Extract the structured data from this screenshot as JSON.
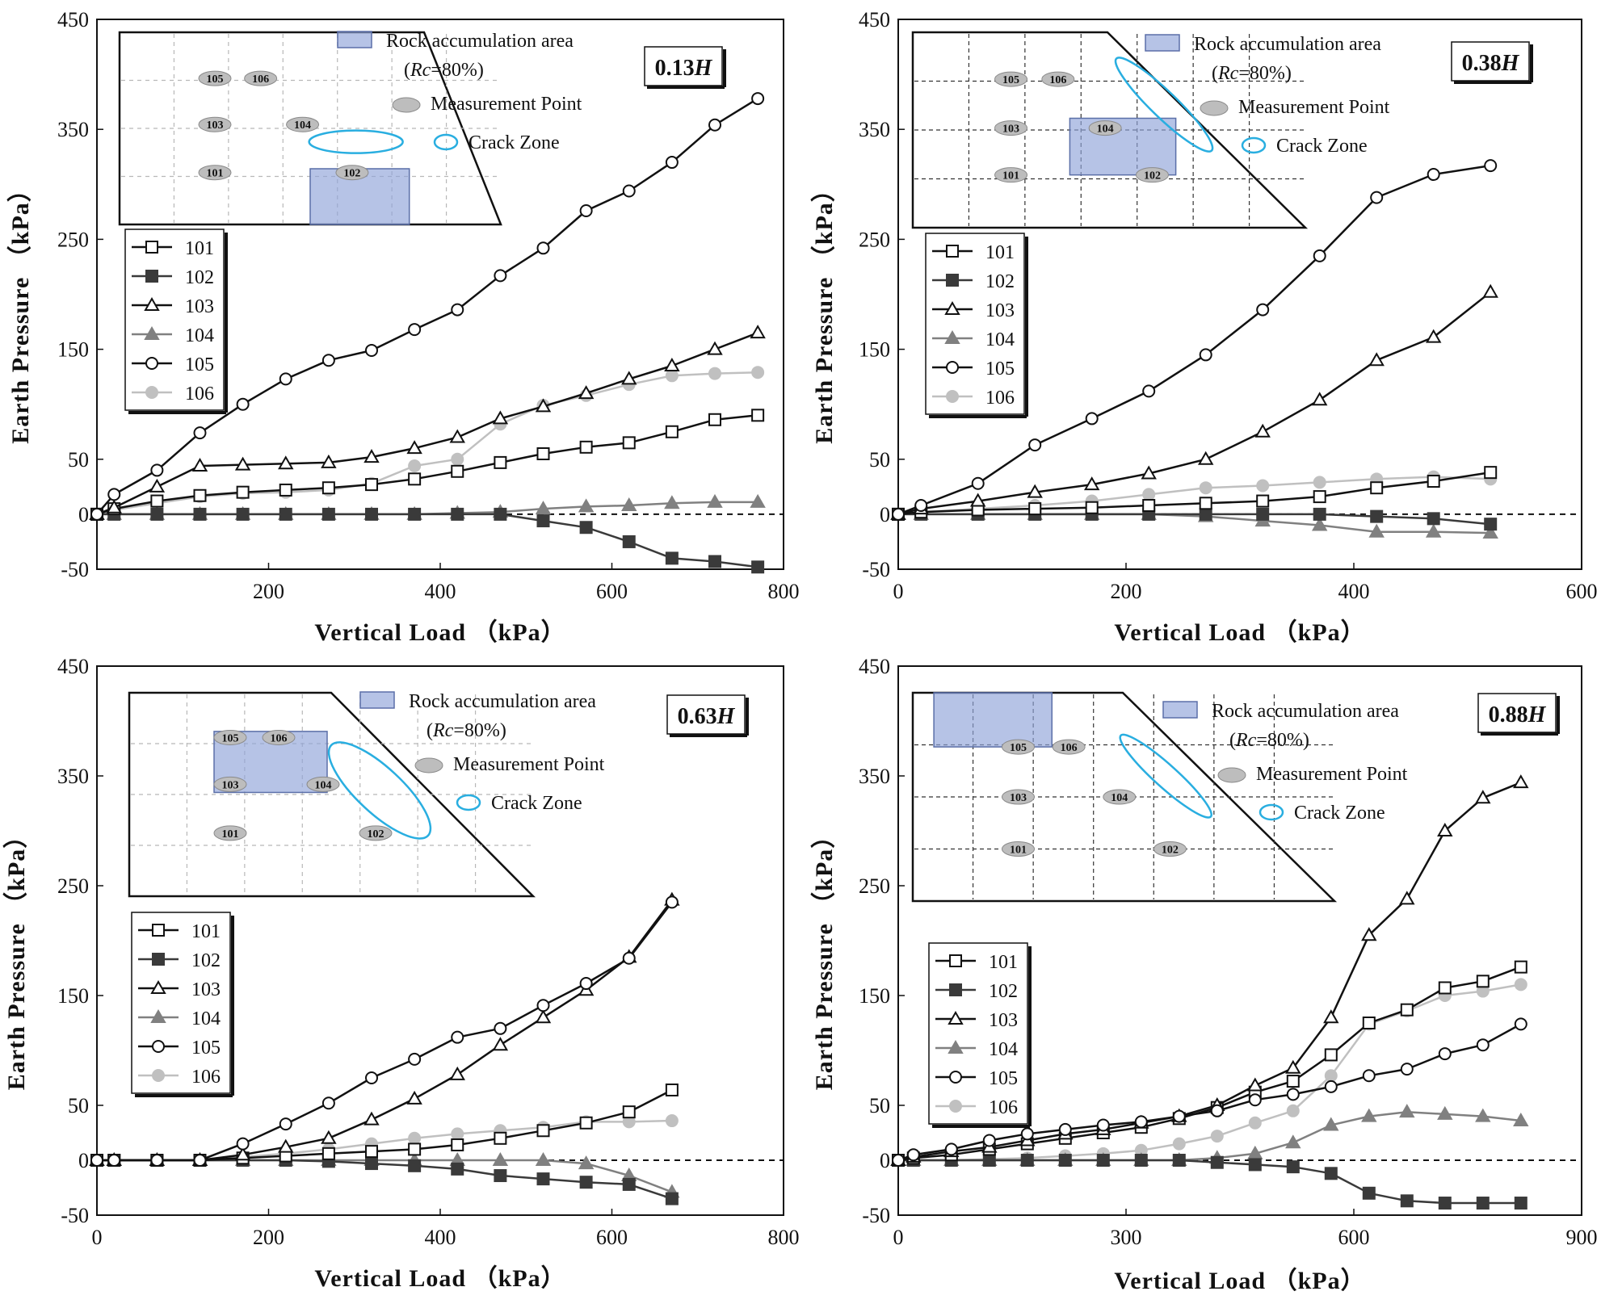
{
  "page": {
    "background": "#ffffff"
  },
  "styles": {
    "black": "#111111",
    "dark_gray": "#3a3a3a",
    "mid_gray": "#808080",
    "light_gray": "#c0c0c0",
    "crack_color": "#29aee0",
    "rock_fill": "#8fa3d8",
    "rock_stroke": "#5b6fa8"
  },
  "series_styles": {
    "101": {
      "color": "#111111",
      "marker": "square-open"
    },
    "102": {
      "color": "#3a3a3a",
      "marker": "square-filled"
    },
    "103": {
      "color": "#111111",
      "marker": "triangle-open"
    },
    "104": {
      "color": "#808080",
      "marker": "triangle-filled"
    },
    "105": {
      "color": "#111111",
      "marker": "circle-open"
    },
    "106": {
      "color": "#c0c0c0",
      "marker": "circle-filled"
    }
  },
  "inset_labels": {
    "rock_area": "Rock accumulation area",
    "rc_prefix": "(",
    "rc_italic": "Rc",
    "rc_suffix": "=80%)",
    "measurement_point": "Measurement Point",
    "crack_zone": "Crack Zone"
  },
  "chart_data": [
    {
      "type": "line",
      "panel": "top-left",
      "badge": {
        "value": "0.13",
        "italic": "H"
      },
      "xlabel": "Vertical Load （kPa）",
      "ylabel": "Earth Pressure （kPa）",
      "xlim": [
        0,
        800
      ],
      "ylim": [
        -50,
        450
      ],
      "xticks": [
        200,
        400,
        600,
        800
      ],
      "yticks": [
        450,
        350,
        250,
        150,
        50,
        0,
        -50
      ],
      "x": [
        0,
        20,
        70,
        120,
        170,
        220,
        270,
        320,
        370,
        420,
        470,
        520,
        570,
        620,
        670,
        720,
        770
      ],
      "series": [
        {
          "name": "101",
          "values": [
            0,
            5,
            12,
            17,
            20,
            22,
            24,
            27,
            32,
            39,
            47,
            55,
            61,
            65,
            75,
            86,
            90
          ]
        },
        {
          "name": "102",
          "values": [
            0,
            0,
            0,
            0,
            0,
            0,
            0,
            0,
            0,
            0,
            0,
            -6,
            -12,
            -25,
            -40,
            -43,
            -48
          ]
        },
        {
          "name": "103",
          "values": [
            0,
            6,
            25,
            44,
            45,
            46,
            47,
            52,
            60,
            70,
            87,
            98,
            110,
            123,
            135,
            150,
            165
          ]
        },
        {
          "name": "104",
          "values": [
            0,
            0,
            0,
            0,
            0,
            0,
            0,
            0,
            0,
            1,
            2,
            5,
            7,
            8,
            10,
            11,
            11
          ]
        },
        {
          "name": "105",
          "values": [
            0,
            18,
            40,
            74,
            100,
            123,
            140,
            149,
            168,
            186,
            217,
            242,
            276,
            294,
            320,
            354,
            378
          ]
        },
        {
          "name": "106",
          "values": [
            0,
            4,
            10,
            16,
            19,
            20,
            22,
            28,
            44,
            50,
            82,
            99,
            108,
            118,
            126,
            128,
            129
          ]
        }
      ],
      "legend": [
        "101",
        "102",
        "103",
        "104",
        "105",
        "106"
      ],
      "legend_position": "left",
      "measurement_points": [
        "105",
        "106",
        "103",
        "104",
        "101",
        "102"
      ]
    },
    {
      "type": "line",
      "panel": "top-right",
      "badge": {
        "value": "0.38",
        "italic": "H"
      },
      "xlabel": "Vertical Load （kPa）",
      "ylabel": "Earth Pressure （kPa）",
      "xlim": [
        0,
        600
      ],
      "ylim": [
        -50,
        450
      ],
      "xticks": [
        0,
        200,
        400,
        600
      ],
      "yticks": [
        450,
        350,
        250,
        150,
        50,
        0,
        -50
      ],
      "x": [
        0,
        20,
        70,
        120,
        170,
        220,
        270,
        320,
        370,
        420,
        470,
        520
      ],
      "series": [
        {
          "name": "101",
          "values": [
            0,
            2,
            4,
            5,
            6,
            8,
            10,
            12,
            16,
            24,
            30,
            38
          ]
        },
        {
          "name": "102",
          "values": [
            0,
            0,
            0,
            0,
            0,
            0,
            0,
            0,
            0,
            -2,
            -4,
            -9
          ]
        },
        {
          "name": "103",
          "values": [
            0,
            5,
            12,
            20,
            27,
            37,
            50,
            75,
            104,
            140,
            161,
            202
          ]
        },
        {
          "name": "104",
          "values": [
            0,
            0,
            0,
            0,
            0,
            0,
            -2,
            -6,
            -10,
            -16,
            -16,
            -17
          ]
        },
        {
          "name": "105",
          "values": [
            0,
            8,
            28,
            63,
            87,
            112,
            145,
            186,
            235,
            288,
            309,
            317
          ]
        },
        {
          "name": "106",
          "values": [
            0,
            2,
            5,
            8,
            12,
            18,
            24,
            26,
            29,
            32,
            34,
            32
          ]
        }
      ],
      "legend": [
        "101",
        "102",
        "103",
        "104",
        "105",
        "106"
      ],
      "legend_position": "left",
      "measurement_points": [
        "105",
        "106",
        "103",
        "104",
        "101",
        "102"
      ]
    },
    {
      "type": "line",
      "panel": "bottom-left",
      "badge": {
        "value": "0.63",
        "italic": "H"
      },
      "xlabel": "Vertical Load （kPa）",
      "ylabel": "Earth Pressure （kPa）",
      "xlim": [
        0,
        800
      ],
      "ylim": [
        -50,
        450
      ],
      "xticks": [
        0,
        200,
        400,
        600,
        800
      ],
      "yticks": [
        450,
        350,
        250,
        150,
        50,
        0,
        -50
      ],
      "x": [
        0,
        20,
        70,
        120,
        170,
        220,
        270,
        320,
        370,
        420,
        470,
        520,
        570,
        620,
        670
      ],
      "series": [
        {
          "name": "101",
          "values": [
            0,
            0,
            0,
            0,
            2,
            4,
            6,
            8,
            10,
            14,
            20,
            27,
            34,
            44,
            64
          ]
        },
        {
          "name": "102",
          "values": [
            0,
            0,
            0,
            0,
            0,
            0,
            -1,
            -3,
            -5,
            -8,
            -14,
            -17,
            -20,
            -22,
            -35
          ]
        },
        {
          "name": "103",
          "values": [
            0,
            0,
            0,
            0,
            5,
            12,
            20,
            37,
            56,
            78,
            105,
            130,
            155,
            185,
            237
          ]
        },
        {
          "name": "104",
          "values": [
            0,
            0,
            0,
            0,
            0,
            0,
            0,
            0,
            0,
            0,
            0,
            0,
            -3,
            -14,
            -29
          ]
        },
        {
          "name": "105",
          "values": [
            0,
            0,
            0,
            0,
            15,
            33,
            52,
            75,
            92,
            112,
            120,
            141,
            161,
            184,
            235
          ]
        },
        {
          "name": "106",
          "values": [
            0,
            0,
            0,
            0,
            3,
            6,
            10,
            15,
            20,
            24,
            27,
            30,
            35,
            35,
            36
          ]
        }
      ],
      "legend": [
        "101",
        "102",
        "103",
        "104",
        "105",
        "106"
      ],
      "legend_position": "left",
      "measurement_points": [
        "105",
        "106",
        "103",
        "104",
        "101",
        "102"
      ]
    },
    {
      "type": "line",
      "panel": "bottom-right",
      "badge": {
        "value": "0.88",
        "italic": "H"
      },
      "xlabel": "Vertical Load （kPa）",
      "ylabel": "Earth Pressure （kPa）",
      "xlim": [
        0,
        900
      ],
      "ylim": [
        -50,
        450
      ],
      "xticks": [
        0,
        300,
        600,
        900
      ],
      "yticks": [
        450,
        350,
        250,
        150,
        50,
        0,
        -50
      ],
      "x": [
        0,
        20,
        70,
        120,
        170,
        220,
        270,
        320,
        370,
        420,
        470,
        520,
        570,
        620,
        670,
        720,
        770,
        820
      ],
      "series": [
        {
          "name": "101",
          "values": [
            0,
            2,
            5,
            10,
            15,
            20,
            25,
            30,
            38,
            48,
            62,
            72,
            96,
            125,
            137,
            157,
            163,
            176
          ]
        },
        {
          "name": "102",
          "values": [
            0,
            0,
            0,
            0,
            0,
            0,
            0,
            0,
            0,
            -2,
            -4,
            -6,
            -12,
            -30,
            -37,
            -39,
            -39,
            -39
          ]
        },
        {
          "name": "103",
          "values": [
            0,
            3,
            8,
            12,
            18,
            24,
            28,
            34,
            40,
            50,
            68,
            84,
            130,
            205,
            238,
            300,
            330,
            344
          ]
        },
        {
          "name": "104",
          "values": [
            0,
            0,
            0,
            0,
            0,
            0,
            0,
            0,
            0,
            2,
            6,
            16,
            32,
            40,
            44,
            42,
            40,
            36
          ]
        },
        {
          "name": "105",
          "values": [
            0,
            5,
            10,
            18,
            24,
            28,
            32,
            35,
            40,
            45,
            55,
            60,
            67,
            77,
            83,
            97,
            105,
            124
          ]
        },
        {
          "name": "106",
          "values": [
            0,
            0,
            0,
            1,
            2,
            4,
            6,
            9,
            15,
            22,
            34,
            45,
            77,
            124,
            136,
            150,
            154,
            160
          ]
        }
      ],
      "legend": [
        "101",
        "102",
        "103",
        "104",
        "105",
        "106"
      ],
      "legend_position": "left",
      "measurement_points": [
        "105",
        "106",
        "103",
        "104",
        "101",
        "102"
      ]
    }
  ]
}
